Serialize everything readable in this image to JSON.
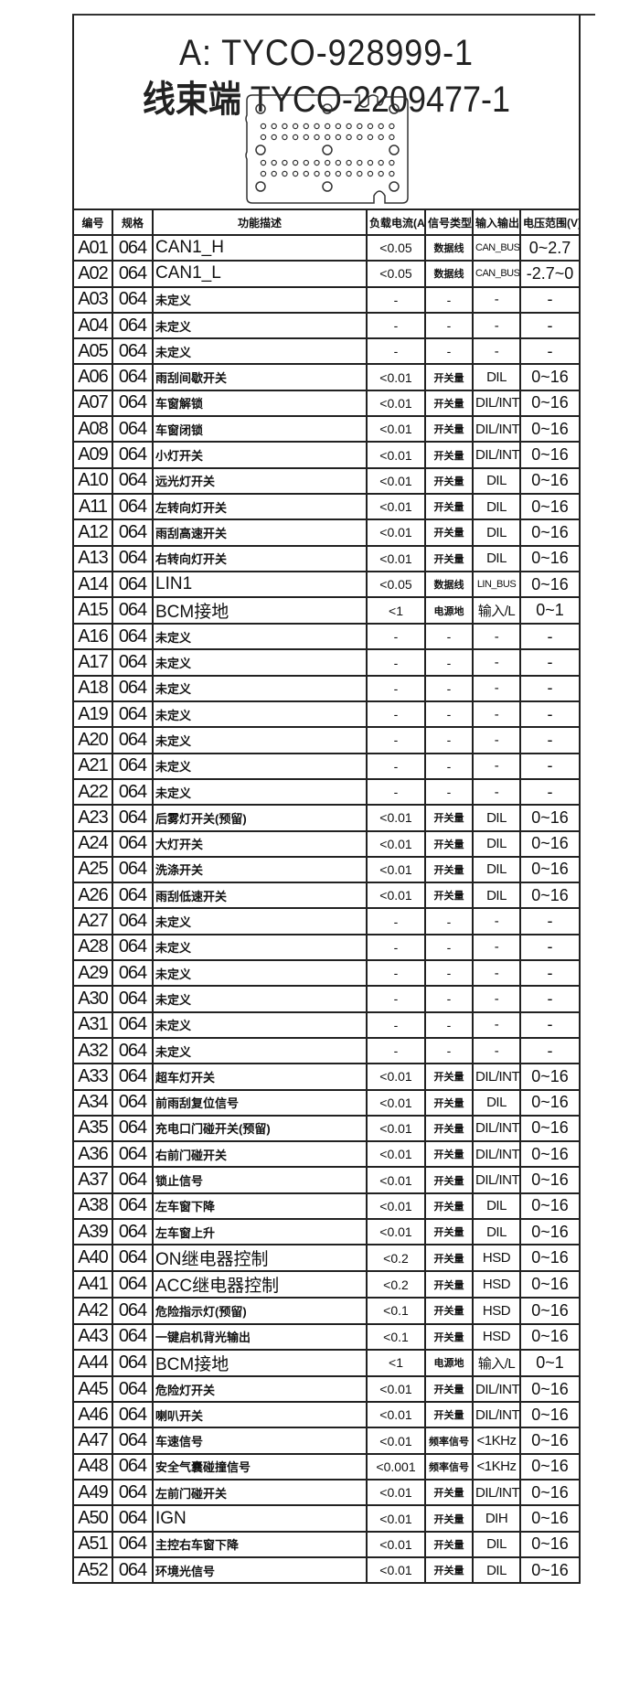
{
  "title": {
    "line1": "A: TYCO-928999-1",
    "line2_cn": "线束端",
    "line2": "TYCO-2209477-1"
  },
  "headers": [
    "编号",
    "规格",
    "功能描述",
    "负载电流(A)",
    "信号类型",
    "输入输出",
    "电压范围(V)"
  ],
  "rows": [
    [
      "A01",
      "064",
      "CAN1_H",
      "<0.05",
      "数据线",
      "CAN_BUS",
      "0~2.7"
    ],
    [
      "A02",
      "064",
      "CAN1_L",
      "<0.05",
      "数据线",
      "CAN_BUS",
      "-2.7~0"
    ],
    [
      "A03",
      "064",
      "未定义",
      "-",
      "-",
      "-",
      "-"
    ],
    [
      "A04",
      "064",
      "未定义",
      "-",
      "-",
      "-",
      "-"
    ],
    [
      "A05",
      "064",
      "未定义",
      "-",
      "-",
      "-",
      "-"
    ],
    [
      "A06",
      "064",
      "雨刮间歇开关",
      "<0.01",
      "开关量",
      "DIL",
      "0~16"
    ],
    [
      "A07",
      "064",
      "车窗解锁",
      "<0.01",
      "开关量",
      "DIL/INT",
      "0~16"
    ],
    [
      "A08",
      "064",
      "车窗闭锁",
      "<0.01",
      "开关量",
      "DIL/INT",
      "0~16"
    ],
    [
      "A09",
      "064",
      "小灯开关",
      "<0.01",
      "开关量",
      "DIL/INT",
      "0~16"
    ],
    [
      "A10",
      "064",
      "远光灯开关",
      "<0.01",
      "开关量",
      "DIL",
      "0~16"
    ],
    [
      "A11",
      "064",
      "左转向灯开关",
      "<0.01",
      "开关量",
      "DIL",
      "0~16"
    ],
    [
      "A12",
      "064",
      "雨刮高速开关",
      "<0.01",
      "开关量",
      "DIL",
      "0~16"
    ],
    [
      "A13",
      "064",
      "右转向灯开关",
      "<0.01",
      "开关量",
      "DIL",
      "0~16"
    ],
    [
      "A14",
      "064",
      "LIN1",
      "<0.05",
      "数据线",
      "LIN_BUS",
      "0~16"
    ],
    [
      "A15",
      "064",
      "BCM接地",
      "<1",
      "电源地",
      "输入/L",
      "0~1"
    ],
    [
      "A16",
      "064",
      "未定义",
      "-",
      "-",
      "-",
      "-"
    ],
    [
      "A17",
      "064",
      "未定义",
      "-",
      "-",
      "-",
      "-"
    ],
    [
      "A18",
      "064",
      "未定义",
      "-",
      "-",
      "-",
      "-"
    ],
    [
      "A19",
      "064",
      "未定义",
      "-",
      "-",
      "-",
      "-"
    ],
    [
      "A20",
      "064",
      "未定义",
      "-",
      "-",
      "-",
      "-"
    ],
    [
      "A21",
      "064",
      "未定义",
      "-",
      "-",
      "-",
      "-"
    ],
    [
      "A22",
      "064",
      "未定义",
      "-",
      "-",
      "-",
      "-"
    ],
    [
      "A23",
      "064",
      "后雾灯开关(预留)",
      "<0.01",
      "开关量",
      "DIL",
      "0~16"
    ],
    [
      "A24",
      "064",
      "大灯开关",
      "<0.01",
      "开关量",
      "DIL",
      "0~16"
    ],
    [
      "A25",
      "064",
      "洗涤开关",
      "<0.01",
      "开关量",
      "DIL",
      "0~16"
    ],
    [
      "A26",
      "064",
      "雨刮低速开关",
      "<0.01",
      "开关量",
      "DIL",
      "0~16"
    ],
    [
      "A27",
      "064",
      "未定义",
      "-",
      "-",
      "-",
      "-"
    ],
    [
      "A28",
      "064",
      "未定义",
      "-",
      "-",
      "-",
      "-"
    ],
    [
      "A29",
      "064",
      "未定义",
      "-",
      "-",
      "-",
      "-"
    ],
    [
      "A30",
      "064",
      "未定义",
      "-",
      "-",
      "-",
      "-"
    ],
    [
      "A31",
      "064",
      "未定义",
      "-",
      "-",
      "-",
      "-"
    ],
    [
      "A32",
      "064",
      "未定义",
      "-",
      "-",
      "-",
      "-"
    ],
    [
      "A33",
      "064",
      "超车灯开关",
      "<0.01",
      "开关量",
      "DIL/INT",
      "0~16"
    ],
    [
      "A34",
      "064",
      "前雨刮复位信号",
      "<0.01",
      "开关量",
      "DIL",
      "0~16"
    ],
    [
      "A35",
      "064",
      "充电口门碰开关(预留)",
      "<0.01",
      "开关量",
      "DIL/INT",
      "0~16"
    ],
    [
      "A36",
      "064",
      "右前门碰开关",
      "<0.01",
      "开关量",
      "DIL/INT",
      "0~16"
    ],
    [
      "A37",
      "064",
      "锁止信号",
      "<0.01",
      "开关量",
      "DIL/INT",
      "0~16"
    ],
    [
      "A38",
      "064",
      "左车窗下降",
      "<0.01",
      "开关量",
      "DIL",
      "0~16"
    ],
    [
      "A39",
      "064",
      "左车窗上升",
      "<0.01",
      "开关量",
      "DIL",
      "0~16"
    ],
    [
      "A40",
      "064",
      "ON继电器控制",
      "<0.2",
      "开关量",
      "HSD",
      "0~16"
    ],
    [
      "A41",
      "064",
      "ACC继电器控制",
      "<0.2",
      "开关量",
      "HSD",
      "0~16"
    ],
    [
      "A42",
      "064",
      "危险指示灯(预留)",
      "<0.1",
      "开关量",
      "HSD",
      "0~16"
    ],
    [
      "A43",
      "064",
      "一键启机背光输出",
      "<0.1",
      "开关量",
      "HSD",
      "0~16"
    ],
    [
      "A44",
      "064",
      "BCM接地",
      "<1",
      "电源地",
      "输入/L",
      "0~1"
    ],
    [
      "A45",
      "064",
      "危险灯开关",
      "<0.01",
      "开关量",
      "DIL/INT",
      "0~16"
    ],
    [
      "A46",
      "064",
      "喇叭开关",
      "<0.01",
      "开关量",
      "DIL/INT",
      "0~16"
    ],
    [
      "A47",
      "064",
      "车速信号",
      "<0.01",
      "频率信号",
      "<1KHz",
      "0~16"
    ],
    [
      "A48",
      "064",
      "安全气囊碰撞信号",
      "<0.001",
      "频率信号",
      "<1KHz",
      "0~16"
    ],
    [
      "A49",
      "064",
      "左前门碰开关",
      "<0.01",
      "开关量",
      "DIL/INT",
      "0~16"
    ],
    [
      "A50",
      "064",
      "IGN",
      "<0.01",
      "开关量",
      "DIH",
      "0~16"
    ],
    [
      "A51",
      "064",
      "主控右车窗下降",
      "<0.01",
      "开关量",
      "DIL",
      "0~16"
    ],
    [
      "A52",
      "064",
      "环境光信号",
      "<0.01",
      "开关量",
      "DIL",
      "0~16"
    ]
  ]
}
